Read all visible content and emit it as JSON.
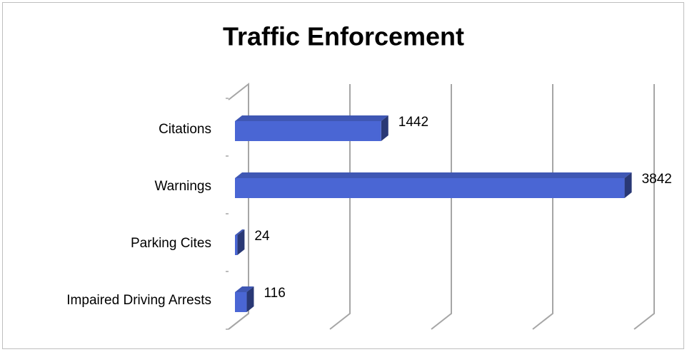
{
  "chart_data": {
    "type": "bar3d-horizontal",
    "title": "Traffic Enforcement",
    "categories": [
      "Citations",
      "Warnings",
      "Parking Cites",
      "Impaired Driving Arrests"
    ],
    "values": [
      1442,
      3842,
      24,
      116
    ],
    "color": "#4a66d4",
    "xlim": [
      0,
      4000
    ],
    "xticks": [
      0,
      1000,
      2000,
      3000,
      4000
    ],
    "grid": true
  }
}
